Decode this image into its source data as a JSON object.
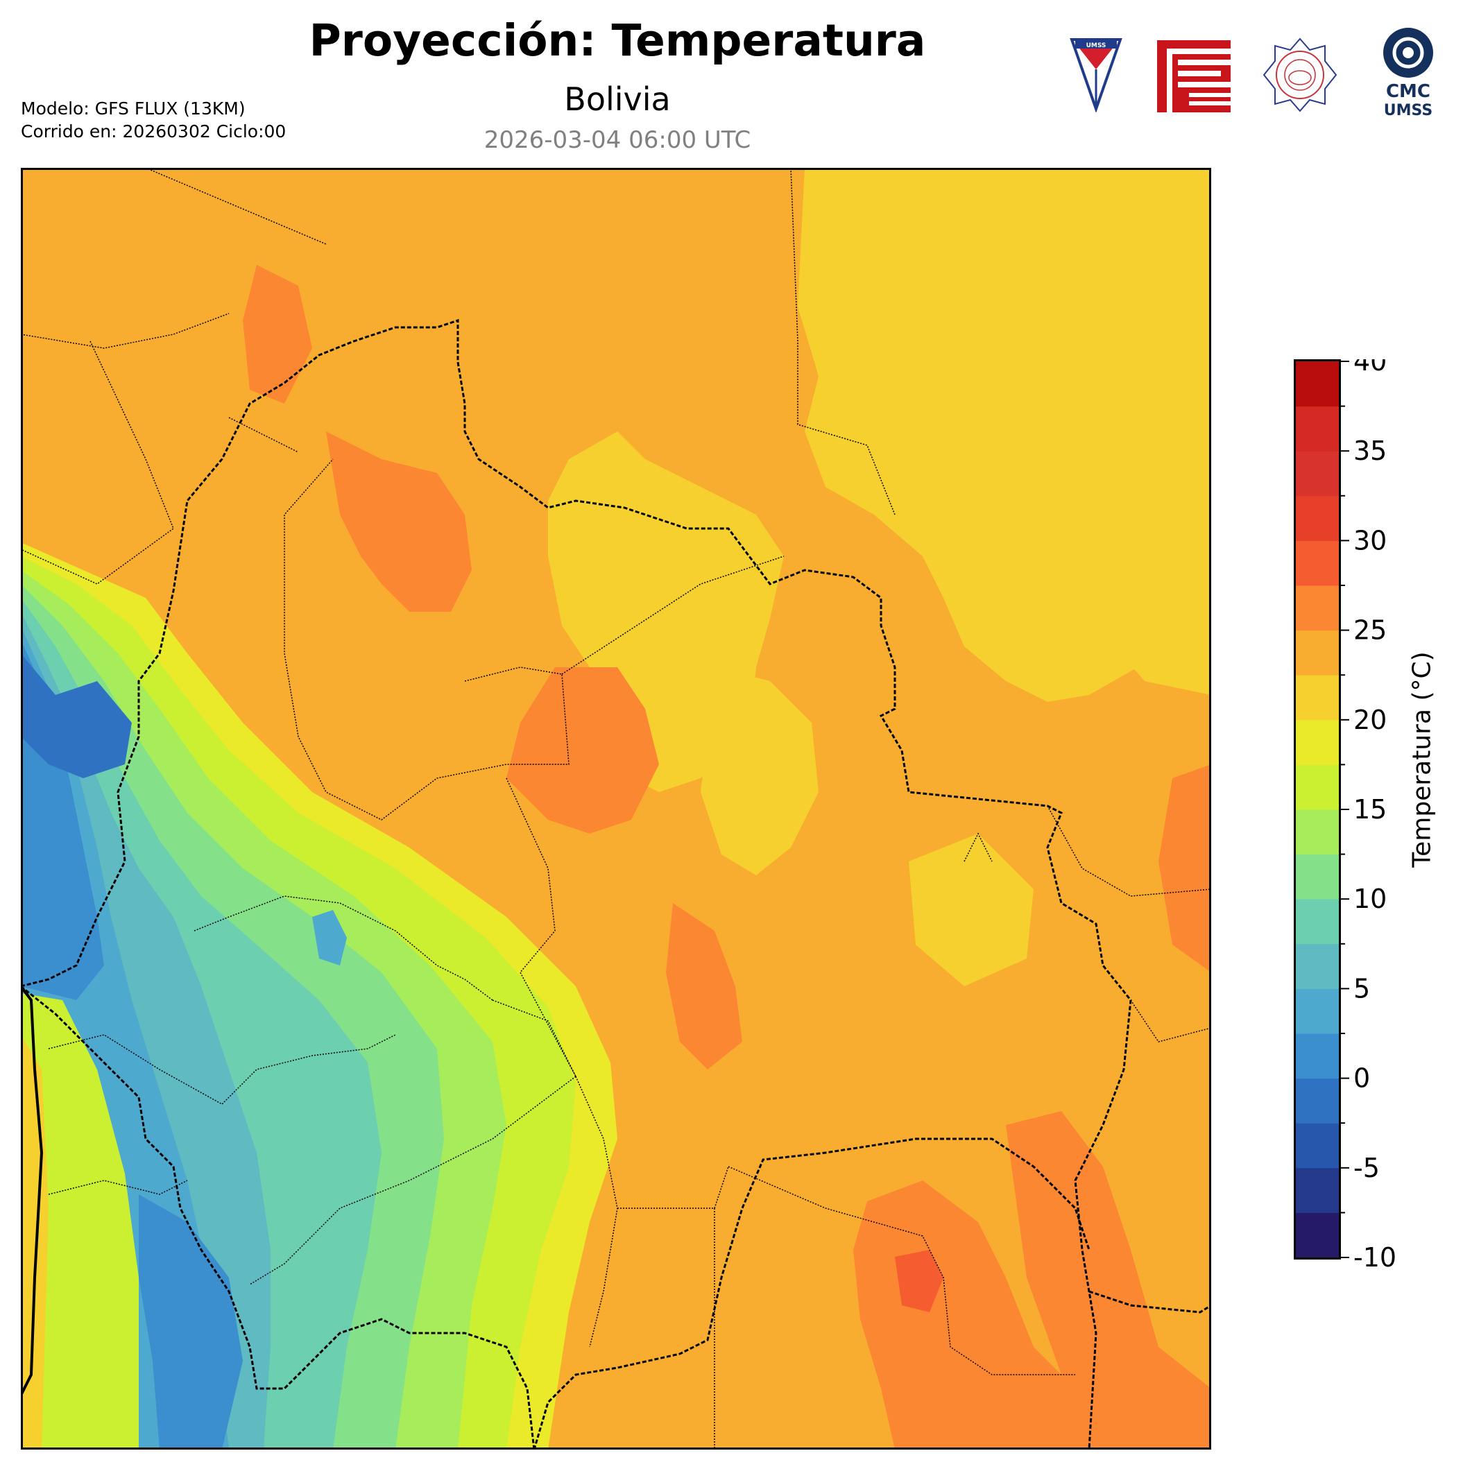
{
  "header": {
    "title": "Proyección: Temperatura",
    "region": "Bolivia",
    "valid_time": "2026-03-04 06:00 UTC"
  },
  "model_info": {
    "model_line": "Modelo: GFS FLUX (13KM)",
    "run_line": "Corrido en: 20260302 Ciclo:00"
  },
  "logos": [
    {
      "name": "umss-shield-logo",
      "text": "UMSS"
    },
    {
      "name": "red-fcyt-logo"
    },
    {
      "name": "departamento-fisica-seal"
    },
    {
      "name": "cmc-umss-logo",
      "line1": "CMC",
      "line2": "UMSS"
    }
  ],
  "colorbar": {
    "label": "Temperatura (°C)",
    "min": -10,
    "max": 40,
    "step": 2.5,
    "ticks": [
      "40",
      "35",
      "30",
      "25",
      "20",
      "15",
      "10",
      "5",
      "0",
      "-5",
      "-10"
    ],
    "colors": [
      "#241a68",
      "#24398b",
      "#2757ad",
      "#2f72c2",
      "#3b8fcf",
      "#4ea9cf",
      "#5fbac1",
      "#6ccfaf",
      "#85e08a",
      "#a6ec5b",
      "#cbef31",
      "#eae92a",
      "#f6d02e",
      "#f9ad30",
      "#fb8732",
      "#f55c30",
      "#e7402a",
      "#d8332c",
      "#d42a23",
      "#b70d0d"
    ]
  }
}
